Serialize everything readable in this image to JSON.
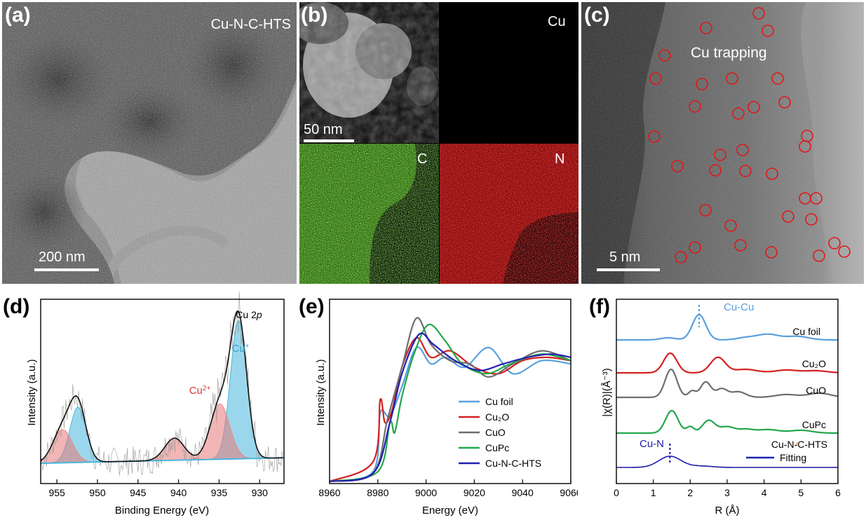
{
  "panels": {
    "a": {
      "label": "(a)",
      "sample": "Cu-N-C-HTS",
      "scale": "200 nm"
    },
    "b": {
      "label": "(b)",
      "scale": "50 nm",
      "maps": [
        "Cu",
        "C",
        "N"
      ]
    },
    "c": {
      "label": "(c)",
      "annotation": "Cu trapping",
      "scale": "5 nm"
    },
    "d": {
      "label": "(d)"
    },
    "e": {
      "label": "(e)"
    },
    "f": {
      "label": "(f)"
    }
  },
  "colors": {
    "cu_foil": "#5aa0dc",
    "cu2o": "#d42020",
    "cuo": "#6e6e6e",
    "cupc": "#22a84a",
    "hts": "#2020b0",
    "cu1": "#49b6dc",
    "cu2": "#e88a8a",
    "fit_orange": "#f0a060"
  },
  "chart_data": [
    {
      "type": "line",
      "panel": "d",
      "xlabel": "Binding Energy (eV)",
      "ylabel": "Intensity (a.u.)",
      "xlim": [
        957,
        927
      ],
      "xticks": [
        955,
        950,
        945,
        940,
        935,
        930
      ],
      "annotations": [
        "Cu 2p",
        "Cu+",
        "Cu2+"
      ],
      "series": [
        {
          "name": "Cu+",
          "peaks": [
            932.6,
            952.4
          ],
          "heights": [
            0.75,
            0.3
          ]
        },
        {
          "name": "Cu2+",
          "peaks": [
            934.9,
            954.3,
            940.5
          ],
          "heights": [
            0.3,
            0.18,
            0.12
          ]
        }
      ]
    },
    {
      "type": "line",
      "panel": "e",
      "xlabel": "Energy (eV)",
      "ylabel": "Intensity (a.u.)",
      "xlim": [
        8960,
        9060
      ],
      "xticks": [
        8960,
        8980,
        9000,
        9020,
        9040,
        9060
      ],
      "legend": "center-right",
      "series": [
        {
          "name": "Cu foil",
          "x": [
            8960,
            8978,
            8981,
            8985,
            8990,
            8996,
            9002,
            9008,
            9016,
            9026,
            9036,
            9048,
            9060
          ],
          "y": [
            0.0,
            0.06,
            0.42,
            0.4,
            0.58,
            0.82,
            0.72,
            0.76,
            0.7,
            0.82,
            0.66,
            0.74,
            0.72
          ]
        },
        {
          "name": "Cu2O",
          "x": [
            8960,
            8978,
            8981,
            8983,
            8986,
            8990,
            8996,
            9002,
            9010,
            9020,
            9030,
            9040,
            9050,
            9060
          ],
          "y": [
            0.0,
            0.12,
            0.5,
            0.36,
            0.44,
            0.7,
            0.88,
            0.76,
            0.8,
            0.7,
            0.66,
            0.74,
            0.76,
            0.74
          ]
        },
        {
          "name": "CuO",
          "x": [
            8960,
            8978,
            8984,
            8990,
            8996,
            9002,
            9010,
            9018,
            9026,
            9036,
            9048,
            9060
          ],
          "y": [
            0.0,
            0.05,
            0.38,
            0.7,
            1.0,
            0.84,
            0.74,
            0.72,
            0.64,
            0.72,
            0.8,
            0.74
          ]
        },
        {
          "name": "CuPc",
          "x": [
            8960,
            8980,
            8985,
            8987,
            8990,
            8995,
            9001,
            9008,
            9015,
            9025,
            9035,
            9048,
            9060
          ],
          "y": [
            0.0,
            0.06,
            0.36,
            0.3,
            0.52,
            0.78,
            0.96,
            0.86,
            0.72,
            0.66,
            0.72,
            0.78,
            0.74
          ]
        },
        {
          "name": "Cu-N-C-HTS",
          "x": [
            8960,
            8978,
            8985,
            8990,
            8997,
            9003,
            9012,
            9022,
            9032,
            9042,
            9052,
            9060
          ],
          "y": [
            0.0,
            0.05,
            0.36,
            0.66,
            0.9,
            0.84,
            0.74,
            0.68,
            0.72,
            0.76,
            0.78,
            0.76
          ]
        }
      ]
    },
    {
      "type": "line",
      "panel": "f",
      "xlabel": "R (Å)",
      "ylabel": "|χ(R)|(Å⁻³)",
      "xlim": [
        0,
        6
      ],
      "xticks": [
        0,
        1,
        2,
        3,
        4,
        5,
        6
      ],
      "annotations": [
        "Cu-Cu",
        "Cu-N"
      ],
      "series": [
        {
          "name": "Cu foil",
          "peak_r": 2.24
        },
        {
          "name": "Cu2O",
          "peak_r": 1.46
        },
        {
          "name": "CuO",
          "peak_r": 1.48
        },
        {
          "name": "CuPc",
          "peak_r": 1.5
        },
        {
          "name": "Cu-N-C-HTS",
          "peak_r": 1.45
        },
        {
          "name": "Fitting",
          "peak_r": 1.45
        }
      ]
    }
  ]
}
